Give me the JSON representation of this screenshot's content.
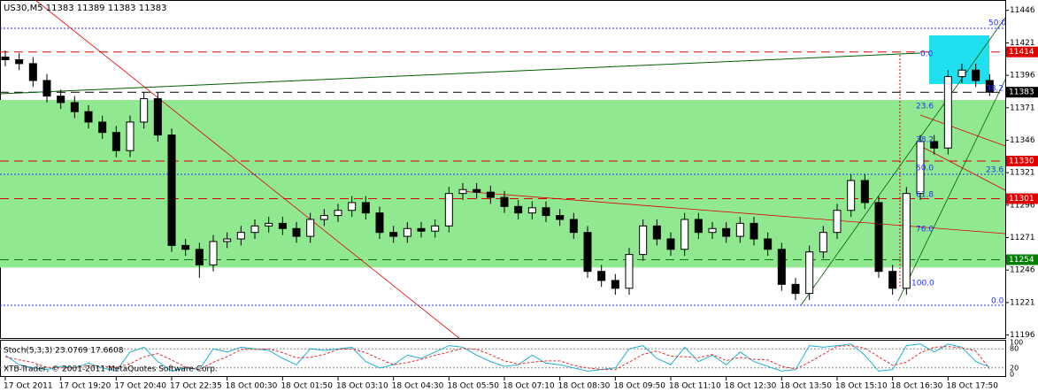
{
  "chart_data": {
    "type": "candlestick",
    "title": "US30,M5  11383 11389 11383 11383",
    "copyright": "XTB-Trader, © 2001-2011 MetaQuotes Software Corp.",
    "categories": [
      "17 Oct 2011",
      null,
      null,
      null,
      "17 Oct 19:20",
      null,
      null,
      null,
      "17 Oct 20:40",
      null,
      null,
      null,
      "17 Oct 22:35",
      null,
      null,
      null,
      "18 Oct 00:30",
      null,
      null,
      null,
      "18 Oct 01:50",
      null,
      null,
      null,
      "18 Oct 03:10",
      null,
      null,
      null,
      "18 Oct 04:30",
      null,
      null,
      null,
      "18 Oct 05:50",
      null,
      null,
      null,
      "18 Oct 07:10",
      null,
      null,
      null,
      "18 Oct 08:30",
      null,
      null,
      null,
      "18 Oct 09:50",
      null,
      null,
      null,
      "18 Oct 11:10",
      null,
      null,
      null,
      "18 Oct 12:30",
      null,
      null,
      null,
      "18 Oct 13:50",
      null,
      null,
      null,
      "18 Oct 15:10",
      null,
      null,
      null,
      "18 Oct 16:30",
      null,
      null,
      null,
      "18 Oct 17:50",
      null,
      null,
      null
    ],
    "open": [
      11410,
      11408,
      11405,
      11392,
      11380,
      11375,
      11368,
      11360,
      11352,
      11338,
      11360,
      11378,
      11350,
      11265,
      11262,
      11250,
      11268,
      11270,
      11275,
      11280,
      11282,
      11278,
      11272,
      11285,
      11288,
      11292,
      11298,
      11290,
      11275,
      11272,
      11278,
      11276,
      11280,
      11305,
      11308,
      11306,
      11302,
      11295,
      11290,
      11294,
      11288,
      11285,
      11275,
      11245,
      11238,
      11232,
      11258,
      11280,
      11270,
      11262,
      11285,
      11275,
      11278,
      11272,
      11282,
      11270,
      11262,
      11235,
      11228,
      11260,
      11275,
      11292,
      11315,
      11298,
      11245,
      11232,
      11305,
      11345,
      11340,
      11395,
      11400,
      11392
    ],
    "high": [
      11415,
      11413,
      11410,
      11397,
      11385,
      11380,
      11373,
      11365,
      11357,
      11365,
      11383,
      11383,
      11355,
      11270,
      11267,
      11273,
      11275,
      11280,
      11285,
      11287,
      11287,
      11283,
      11290,
      11293,
      11297,
      11303,
      11303,
      11295,
      11280,
      11283,
      11283,
      11285,
      11310,
      11313,
      11313,
      11311,
      11307,
      11300,
      11299,
      11299,
      11293,
      11290,
      11280,
      11250,
      11243,
      11263,
      11285,
      11285,
      11275,
      11290,
      11290,
      11283,
      11283,
      11287,
      11287,
      11275,
      11267,
      11240,
      11265,
      11280,
      11297,
      11320,
      11320,
      11303,
      11250,
      11310,
      11350,
      11350,
      11400,
      11405,
      11405,
      11397
    ],
    "low": [
      11403,
      11400,
      11387,
      11375,
      11370,
      11363,
      11355,
      11347,
      11333,
      11333,
      11355,
      11345,
      11260,
      11257,
      11240,
      11245,
      11263,
      11265,
      11270,
      11275,
      11273,
      11267,
      11267,
      11280,
      11283,
      11287,
      11285,
      11270,
      11267,
      11267,
      11271,
      11271,
      11275,
      11300,
      11301,
      11297,
      11290,
      11285,
      11285,
      11283,
      11280,
      11270,
      11240,
      11233,
      11227,
      11227,
      11253,
      11265,
      11257,
      11257,
      11270,
      11270,
      11267,
      11267,
      11265,
      11257,
      11230,
      11223,
      11223,
      11255,
      11270,
      11287,
      11293,
      11240,
      11227,
      11227,
      11300,
      11335,
      11335,
      11390,
      11387,
      11380
    ],
    "close": [
      11408,
      11405,
      11392,
      11380,
      11375,
      11368,
      11360,
      11352,
      11338,
      11360,
      11378,
      11350,
      11265,
      11262,
      11250,
      11268,
      11270,
      11275,
      11280,
      11282,
      11278,
      11272,
      11285,
      11288,
      11292,
      11298,
      11290,
      11275,
      11272,
      11278,
      11276,
      11280,
      11305,
      11308,
      11306,
      11302,
      11295,
      11290,
      11294,
      11288,
      11285,
      11275,
      11245,
      11238,
      11232,
      11258,
      11280,
      11270,
      11262,
      11285,
      11275,
      11278,
      11272,
      11282,
      11270,
      11262,
      11235,
      11228,
      11260,
      11275,
      11292,
      11315,
      11298,
      11245,
      11232,
      11305,
      11345,
      11340,
      11395,
      11400,
      11392,
      11383
    ],
    "ylim": [
      11193,
      11454
    ],
    "yticks": [
      11196,
      11221,
      11246,
      11271,
      11296,
      11321,
      11346,
      11371,
      11396,
      11421,
      11446
    ],
    "zone": [
      11248,
      11377
    ],
    "zone_color": "#90e890",
    "levels": [
      {
        "value": 11414,
        "color": "#e00000"
      },
      {
        "value": 11383,
        "color": "#000000"
      },
      {
        "value": 11330,
        "color": "#e00000"
      },
      {
        "value": 11301,
        "color": "#e00000"
      },
      {
        "value": 11254,
        "color": "#008000"
      }
    ],
    "fib_labels": [
      "50.0",
      "0.0",
      "23.6",
      "38.2",
      "50.0",
      "61.8",
      "76.0",
      "100.0",
      "0.0",
      "23.6",
      "38.2"
    ],
    "stoch": {
      "title": "Stoch(5,3,3) 23.0769 17.6608",
      "ylim": [
        0,
        100
      ],
      "yticks": [
        0,
        20,
        80,
        100
      ],
      "k": [
        60,
        30,
        20,
        15,
        25,
        20,
        35,
        20,
        10,
        70,
        85,
        40,
        10,
        20,
        15,
        80,
        70,
        85,
        80,
        75,
        50,
        30,
        80,
        75,
        80,
        85,
        40,
        20,
        30,
        60,
        50,
        70,
        90,
        85,
        60,
        40,
        25,
        30,
        60,
        35,
        30,
        20,
        10,
        15,
        20,
        80,
        90,
        50,
        30,
        85,
        40,
        60,
        30,
        70,
        40,
        25,
        10,
        15,
        90,
        85,
        90,
        95,
        60,
        10,
        15,
        90,
        95,
        70,
        95,
        85,
        40,
        23.0769
      ],
      "d": [
        55,
        45,
        37,
        22,
        20,
        20,
        27,
        25,
        22,
        33,
        55,
        65,
        45,
        23,
        15,
        38,
        55,
        78,
        78,
        80,
        68,
        52,
        53,
        62,
        78,
        80,
        68,
        48,
        30,
        37,
        47,
        60,
        70,
        82,
        78,
        62,
        42,
        32,
        38,
        42,
        42,
        28,
        20,
        15,
        15,
        38,
        63,
        73,
        57,
        55,
        52,
        62,
        43,
        53,
        47,
        45,
        25,
        17,
        38,
        63,
        88,
        90,
        82,
        55,
        28,
        38,
        67,
        85,
        87,
        83,
        73,
        17.6608
      ],
      "k_color": "#20b0d0",
      "d_color": "#e03030"
    }
  }
}
